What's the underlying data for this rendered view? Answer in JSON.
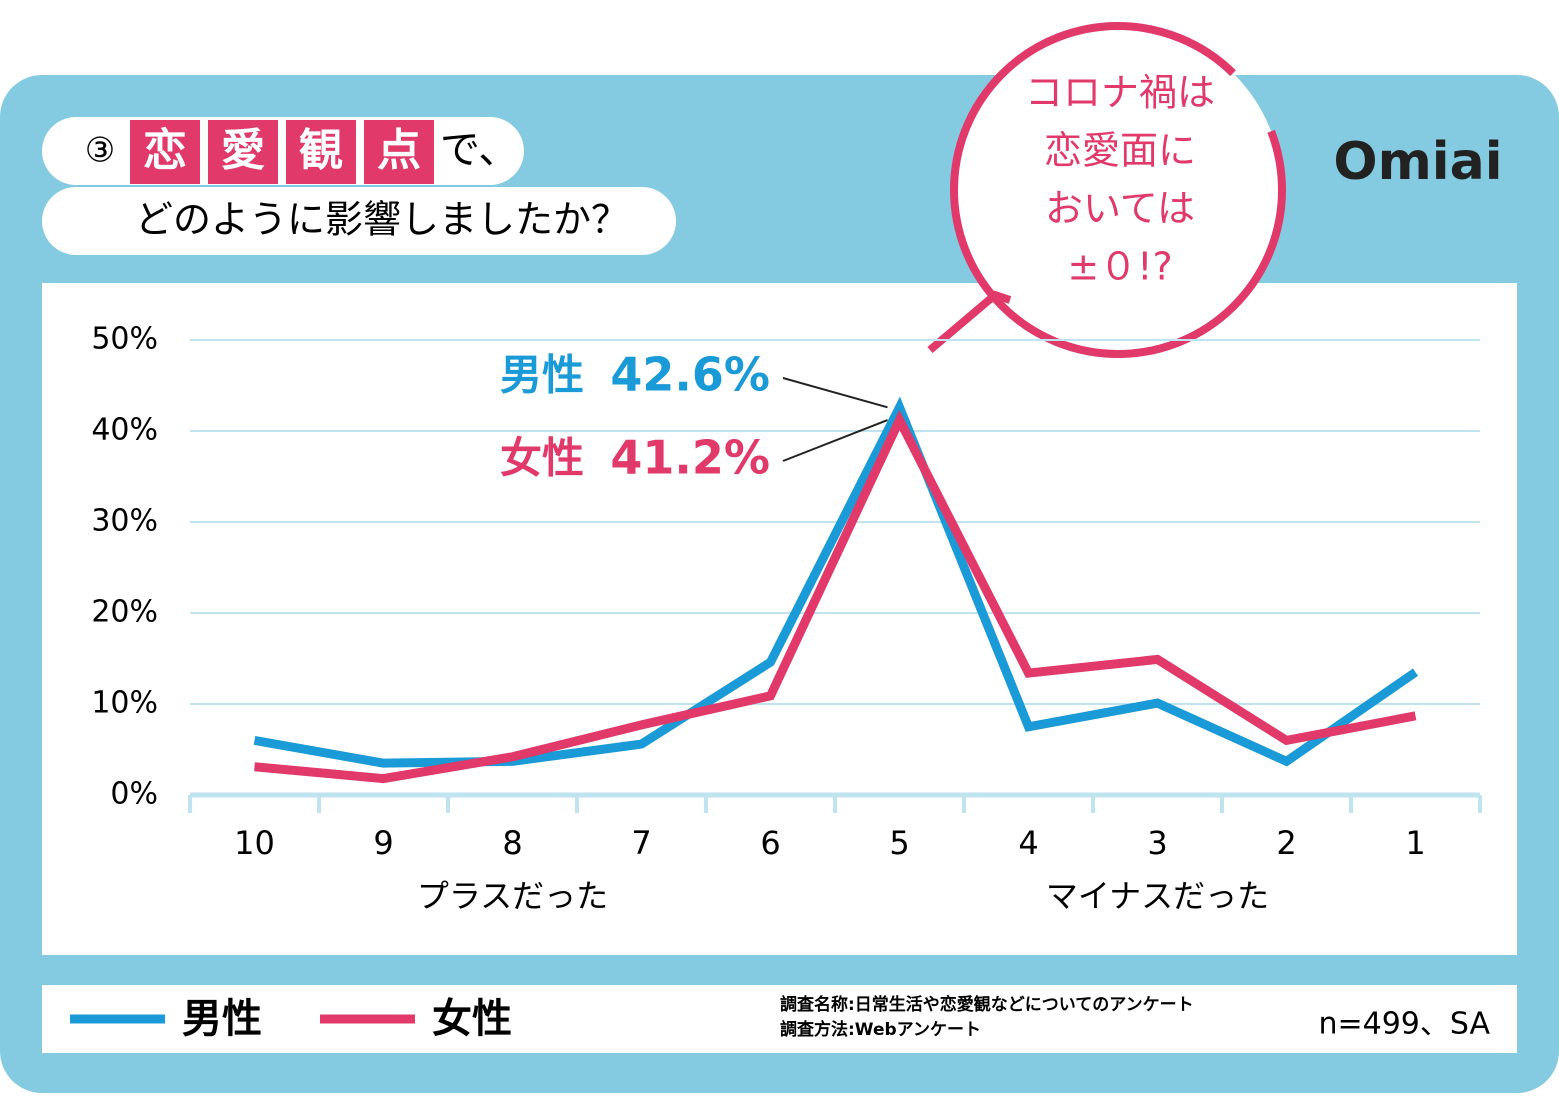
{
  "chart_data": {
    "type": "line",
    "title_marker": "③",
    "title_highlight": [
      "恋",
      "愛",
      "観",
      "点"
    ],
    "title_rest": "で、",
    "subtitle": "どのように影響しましたか？",
    "brand": "Omiai",
    "callout": [
      "コロナ禍は",
      "恋愛面に",
      "おいては",
      "±０!?"
    ],
    "categories": [
      "10",
      "9",
      "8",
      "7",
      "6",
      "5",
      "4",
      "3",
      "2",
      "1"
    ],
    "x_group_labels": [
      "プラスだった",
      "マイナスだった"
    ],
    "series": [
      {
        "name": "男性",
        "color": "#1a9bd7",
        "values": [
          6.0,
          3.5,
          3.7,
          5.6,
          14.6,
          42.6,
          7.5,
          10.1,
          3.7,
          13.5
        ],
        "value_labels": [
          null,
          null,
          null,
          null,
          null,
          "42.6%",
          null,
          null,
          null,
          null
        ]
      },
      {
        "name": "女性",
        "color": "#e0396a",
        "values": [
          3.1,
          1.8,
          4.2,
          7.7,
          10.9,
          41.2,
          13.4,
          14.9,
          6.0,
          8.7
        ],
        "value_labels": [
          null,
          null,
          null,
          null,
          null,
          "41.2%",
          null,
          null,
          null,
          null
        ]
      }
    ],
    "ylim": [
      0,
      50
    ],
    "yticks": [
      {
        "value": 0,
        "label": "0%"
      },
      {
        "value": 10,
        "label": "10%"
      },
      {
        "value": 20,
        "label": "20%"
      },
      {
        "value": 30,
        "label": "30%"
      },
      {
        "value": 40,
        "label": "40%"
      },
      {
        "value": 50,
        "label": "50%"
      }
    ],
    "grid": true,
    "source": [
      "調査名称:日常生活や恋愛観などについてのアンケート",
      "調査方法:Webアンケート"
    ],
    "sample": "n=499、SA"
  }
}
